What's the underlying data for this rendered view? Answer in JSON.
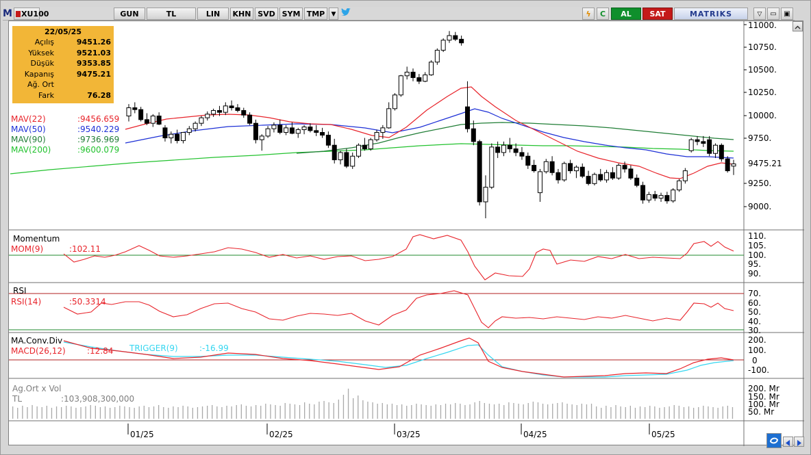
{
  "toolbar": {
    "logo": "M",
    "symbol": "XU100",
    "period": "GUN",
    "currency": "TL",
    "scale": "LIN",
    "buttons": [
      "KHN",
      "SVD",
      "SYM",
      "TMP"
    ],
    "buy_label": "AL",
    "sell_label": "SAT",
    "brand": "MATRIKS"
  },
  "info": {
    "date": "22/05/25",
    "rows": [
      {
        "label": "Açılış",
        "value": "9451.26"
      },
      {
        "label": "Yüksek",
        "value": "9521.03"
      },
      {
        "label": "Düşük",
        "value": "9353.85"
      },
      {
        "label": "Kapanış",
        "value": "9475.21"
      },
      {
        "label": "Ağ. Ort",
        "value": ""
      },
      {
        "label": "Fark",
        "value": "76.28"
      }
    ]
  },
  "price_panel": {
    "legend": [
      {
        "label": "MAV(22)",
        "value": ":9456.659",
        "color": "#e8232a"
      },
      {
        "label": "MAV(50)",
        "value": ":9540.229",
        "color": "#1c2fd6"
      },
      {
        "label": "MAV(90)",
        "value": ":9736.969",
        "color": "#1f7d35"
      },
      {
        "label": "MAV(200)",
        "value": ":9600.079",
        "color": "#22c22e"
      }
    ],
    "axis_labels": [
      "11000.",
      "10750.",
      "10500.",
      "10250.",
      "10000.",
      "9750.",
      "9250.",
      "9000."
    ],
    "last_price": "9475.21"
  },
  "momentum_panel": {
    "title": "Momentum",
    "legend_label": "MOM(9)",
    "legend_value": ":102.11",
    "axis_labels": [
      "110.",
      "105.",
      "100.",
      "95.",
      "90."
    ]
  },
  "rsi_panel": {
    "title": "RSI",
    "legend_label": "RSI(14)",
    "legend_value": ":50.3314",
    "axis_labels": [
      "70.",
      "60.",
      "50.",
      "40.",
      "30."
    ]
  },
  "macd_panel": {
    "title": "MA.Conv.Div",
    "legend_label": "MACD(26,12)",
    "legend_value": ":12.84",
    "trigger_label": "TRIGGER(9)",
    "trigger_value": ":-16.99",
    "axis_labels": [
      "200.",
      "100.",
      "0",
      "-100."
    ]
  },
  "volume_panel": {
    "title": "Ag.Ort x Vol",
    "legend_label": "TL",
    "legend_value": ":103,908,300,000",
    "axis_labels": [
      "200. Mr",
      "150. Mr",
      "100. Mr",
      "50. Mr"
    ]
  },
  "time_axis": [
    "01/25",
    "02/25",
    "03/25",
    "04/25",
    "05/25"
  ],
  "colors": {
    "mav22": "#e8232a",
    "mav50": "#1c2fd6",
    "mav90": "#1f7d35",
    "mav200": "#22c22e",
    "indicator": "#e8232a",
    "trigger": "#35d6f0",
    "info_box": "#f2b637"
  },
  "chart_data": {
    "type": "candlestick",
    "x_range": [
      "12/24",
      "05/25"
    ],
    "ylim": [
      8800,
      11000
    ],
    "last_close": 9475.21,
    "candles": [
      {
        "o": 10000,
        "h": 10130,
        "l": 9940,
        "c": 10090
      },
      {
        "o": 10090,
        "h": 10150,
        "l": 10030,
        "c": 10070
      },
      {
        "o": 10070,
        "h": 10100,
        "l": 9940,
        "c": 9960
      },
      {
        "o": 9960,
        "h": 10030,
        "l": 9900,
        "c": 9920
      },
      {
        "o": 9920,
        "h": 10020,
        "l": 9880,
        "c": 10000
      },
      {
        "o": 10000,
        "h": 10040,
        "l": 9900,
        "c": 9910
      },
      {
        "o": 9870,
        "h": 9900,
        "l": 9720,
        "c": 9760
      },
      {
        "o": 9760,
        "h": 9830,
        "l": 9700,
        "c": 9800
      },
      {
        "o": 9800,
        "h": 9850,
        "l": 9700,
        "c": 9730
      },
      {
        "o": 9730,
        "h": 9820,
        "l": 9700,
        "c": 9820
      },
      {
        "o": 9820,
        "h": 9890,
        "l": 9790,
        "c": 9860
      },
      {
        "o": 9860,
        "h": 9940,
        "l": 9830,
        "c": 9920
      },
      {
        "o": 9920,
        "h": 10000,
        "l": 9890,
        "c": 9980
      },
      {
        "o": 9980,
        "h": 10050,
        "l": 9950,
        "c": 10020
      },
      {
        "o": 10020,
        "h": 10080,
        "l": 9990,
        "c": 10060
      },
      {
        "o": 10060,
        "h": 10110,
        "l": 10000,
        "c": 10040
      },
      {
        "o": 10040,
        "h": 10150,
        "l": 10010,
        "c": 10110
      },
      {
        "o": 10110,
        "h": 10170,
        "l": 10060,
        "c": 10090
      },
      {
        "o": 10090,
        "h": 10130,
        "l": 10040,
        "c": 10060
      },
      {
        "o": 10060,
        "h": 10090,
        "l": 9980,
        "c": 10010
      },
      {
        "o": 10010,
        "h": 10040,
        "l": 9900,
        "c": 9920
      },
      {
        "o": 9920,
        "h": 9960,
        "l": 9700,
        "c": 9740
      },
      {
        "o": 9740,
        "h": 9800,
        "l": 9620,
        "c": 9780
      },
      {
        "o": 9780,
        "h": 9890,
        "l": 9760,
        "c": 9860
      },
      {
        "o": 9860,
        "h": 9930,
        "l": 9820,
        "c": 9900
      },
      {
        "o": 9900,
        "h": 9960,
        "l": 9800,
        "c": 9820
      },
      {
        "o": 9820,
        "h": 9900,
        "l": 9790,
        "c": 9870
      },
      {
        "o": 9870,
        "h": 9930,
        "l": 9800,
        "c": 9810
      },
      {
        "o": 9810,
        "h": 9870,
        "l": 9760,
        "c": 9850
      },
      {
        "o": 9850,
        "h": 9900,
        "l": 9800,
        "c": 9880
      },
      {
        "o": 9880,
        "h": 9920,
        "l": 9820,
        "c": 9840
      },
      {
        "o": 9840,
        "h": 9900,
        "l": 9780,
        "c": 9820
      },
      {
        "o": 9820,
        "h": 9870,
        "l": 9760,
        "c": 9790
      },
      {
        "o": 9790,
        "h": 9830,
        "l": 9650,
        "c": 9680
      },
      {
        "o": 9680,
        "h": 9750,
        "l": 9480,
        "c": 9520
      },
      {
        "o": 9520,
        "h": 9620,
        "l": 9470,
        "c": 9600
      },
      {
        "o": 9600,
        "h": 9640,
        "l": 9430,
        "c": 9450
      },
      {
        "o": 9450,
        "h": 9600,
        "l": 9420,
        "c": 9560
      },
      {
        "o": 9560,
        "h": 9700,
        "l": 9540,
        "c": 9680
      },
      {
        "o": 9680,
        "h": 9760,
        "l": 9620,
        "c": 9640
      },
      {
        "o": 9640,
        "h": 9760,
        "l": 9620,
        "c": 9740
      },
      {
        "o": 9740,
        "h": 9850,
        "l": 9720,
        "c": 9820
      },
      {
        "o": 9820,
        "h": 9900,
        "l": 9750,
        "c": 9870
      },
      {
        "o": 9870,
        "h": 10150,
        "l": 9860,
        "c": 10080
      },
      {
        "o": 10080,
        "h": 10250,
        "l": 10060,
        "c": 10230
      },
      {
        "o": 10230,
        "h": 10450,
        "l": 10210,
        "c": 10440
      },
      {
        "o": 10440,
        "h": 10540,
        "l": 10400,
        "c": 10480
      },
      {
        "o": 10480,
        "h": 10520,
        "l": 10380,
        "c": 10420
      },
      {
        "o": 10420,
        "h": 10460,
        "l": 10350,
        "c": 10380
      },
      {
        "o": 10380,
        "h": 10480,
        "l": 10370,
        "c": 10450
      },
      {
        "o": 10450,
        "h": 10610,
        "l": 10440,
        "c": 10590
      },
      {
        "o": 10590,
        "h": 10740,
        "l": 10560,
        "c": 10720
      },
      {
        "o": 10720,
        "h": 10850,
        "l": 10700,
        "c": 10830
      },
      {
        "o": 10830,
        "h": 10930,
        "l": 10800,
        "c": 10880
      },
      {
        "o": 10880,
        "h": 10920,
        "l": 10820,
        "c": 10840
      },
      {
        "o": 10840,
        "h": 10880,
        "l": 10770,
        "c": 10800
      },
      {
        "o": 10100,
        "h": 10380,
        "l": 9820,
        "c": 9860
      },
      {
        "o": 9860,
        "h": 9950,
        "l": 9680,
        "c": 9720
      },
      {
        "o": 9720,
        "h": 9740,
        "l": 9020,
        "c": 9060
      },
      {
        "o": 9060,
        "h": 9350,
        "l": 8880,
        "c": 9220
      },
      {
        "o": 9220,
        "h": 9700,
        "l": 9200,
        "c": 9660
      },
      {
        "o": 9660,
        "h": 9720,
        "l": 9540,
        "c": 9600
      },
      {
        "o": 9600,
        "h": 9720,
        "l": 9560,
        "c": 9680
      },
      {
        "o": 9680,
        "h": 9760,
        "l": 9600,
        "c": 9640
      },
      {
        "o": 9640,
        "h": 9700,
        "l": 9560,
        "c": 9600
      },
      {
        "o": 9600,
        "h": 9660,
        "l": 9520,
        "c": 9560
      },
      {
        "o": 9560,
        "h": 9600,
        "l": 9420,
        "c": 9460
      },
      {
        "o": 9460,
        "h": 9520,
        "l": 9380,
        "c": 9400
      },
      {
        "o": 9160,
        "h": 9420,
        "l": 9060,
        "c": 9390
      },
      {
        "o": 9390,
        "h": 9530,
        "l": 9370,
        "c": 9500
      },
      {
        "o": 9500,
        "h": 9560,
        "l": 9350,
        "c": 9380
      },
      {
        "o": 9380,
        "h": 9420,
        "l": 9260,
        "c": 9300
      },
      {
        "o": 9300,
        "h": 9500,
        "l": 9280,
        "c": 9480
      },
      {
        "o": 9480,
        "h": 9520,
        "l": 9370,
        "c": 9400
      },
      {
        "o": 9400,
        "h": 9460,
        "l": 9320,
        "c": 9440
      },
      {
        "o": 9440,
        "h": 9480,
        "l": 9320,
        "c": 9340
      },
      {
        "o": 9340,
        "h": 9400,
        "l": 9240,
        "c": 9260
      },
      {
        "o": 9260,
        "h": 9380,
        "l": 9240,
        "c": 9360
      },
      {
        "o": 9360,
        "h": 9420,
        "l": 9280,
        "c": 9300
      },
      {
        "o": 9300,
        "h": 9410,
        "l": 9270,
        "c": 9380
      },
      {
        "o": 9380,
        "h": 9440,
        "l": 9300,
        "c": 9320
      },
      {
        "o": 9320,
        "h": 9480,
        "l": 9300,
        "c": 9460
      },
      {
        "o": 9460,
        "h": 9500,
        "l": 9380,
        "c": 9420
      },
      {
        "o": 9420,
        "h": 9460,
        "l": 9300,
        "c": 9320
      },
      {
        "o": 9320,
        "h": 9360,
        "l": 9220,
        "c": 9240
      },
      {
        "o": 9240,
        "h": 9280,
        "l": 9040,
        "c": 9080
      },
      {
        "o": 9080,
        "h": 9170,
        "l": 9050,
        "c": 9140
      },
      {
        "o": 9140,
        "h": 9180,
        "l": 9070,
        "c": 9100
      },
      {
        "o": 9100,
        "h": 9160,
        "l": 9060,
        "c": 9130
      },
      {
        "o": 9130,
        "h": 9170,
        "l": 9040,
        "c": 9070
      },
      {
        "o": 9070,
        "h": 9210,
        "l": 9050,
        "c": 9190
      },
      {
        "o": 9190,
        "h": 9310,
        "l": 9170,
        "c": 9290
      },
      {
        "o": 9290,
        "h": 9430,
        "l": 9260,
        "c": 9400
      },
      {
        "o": 9620,
        "h": 9760,
        "l": 9600,
        "c": 9740
      },
      {
        "o": 9740,
        "h": 9780,
        "l": 9680,
        "c": 9720
      },
      {
        "o": 9720,
        "h": 9780,
        "l": 9660,
        "c": 9700
      },
      {
        "o": 9740,
        "h": 9780,
        "l": 9560,
        "c": 9590
      },
      {
        "o": 9590,
        "h": 9700,
        "l": 9540,
        "c": 9680
      },
      {
        "o": 9680,
        "h": 9700,
        "l": 9500,
        "c": 9530
      },
      {
        "o": 9530,
        "h": 9560,
        "l": 9380,
        "c": 9400
      },
      {
        "o": 9451.26,
        "h": 9521.03,
        "l": 9353.85,
        "c": 9475.21
      }
    ]
  }
}
